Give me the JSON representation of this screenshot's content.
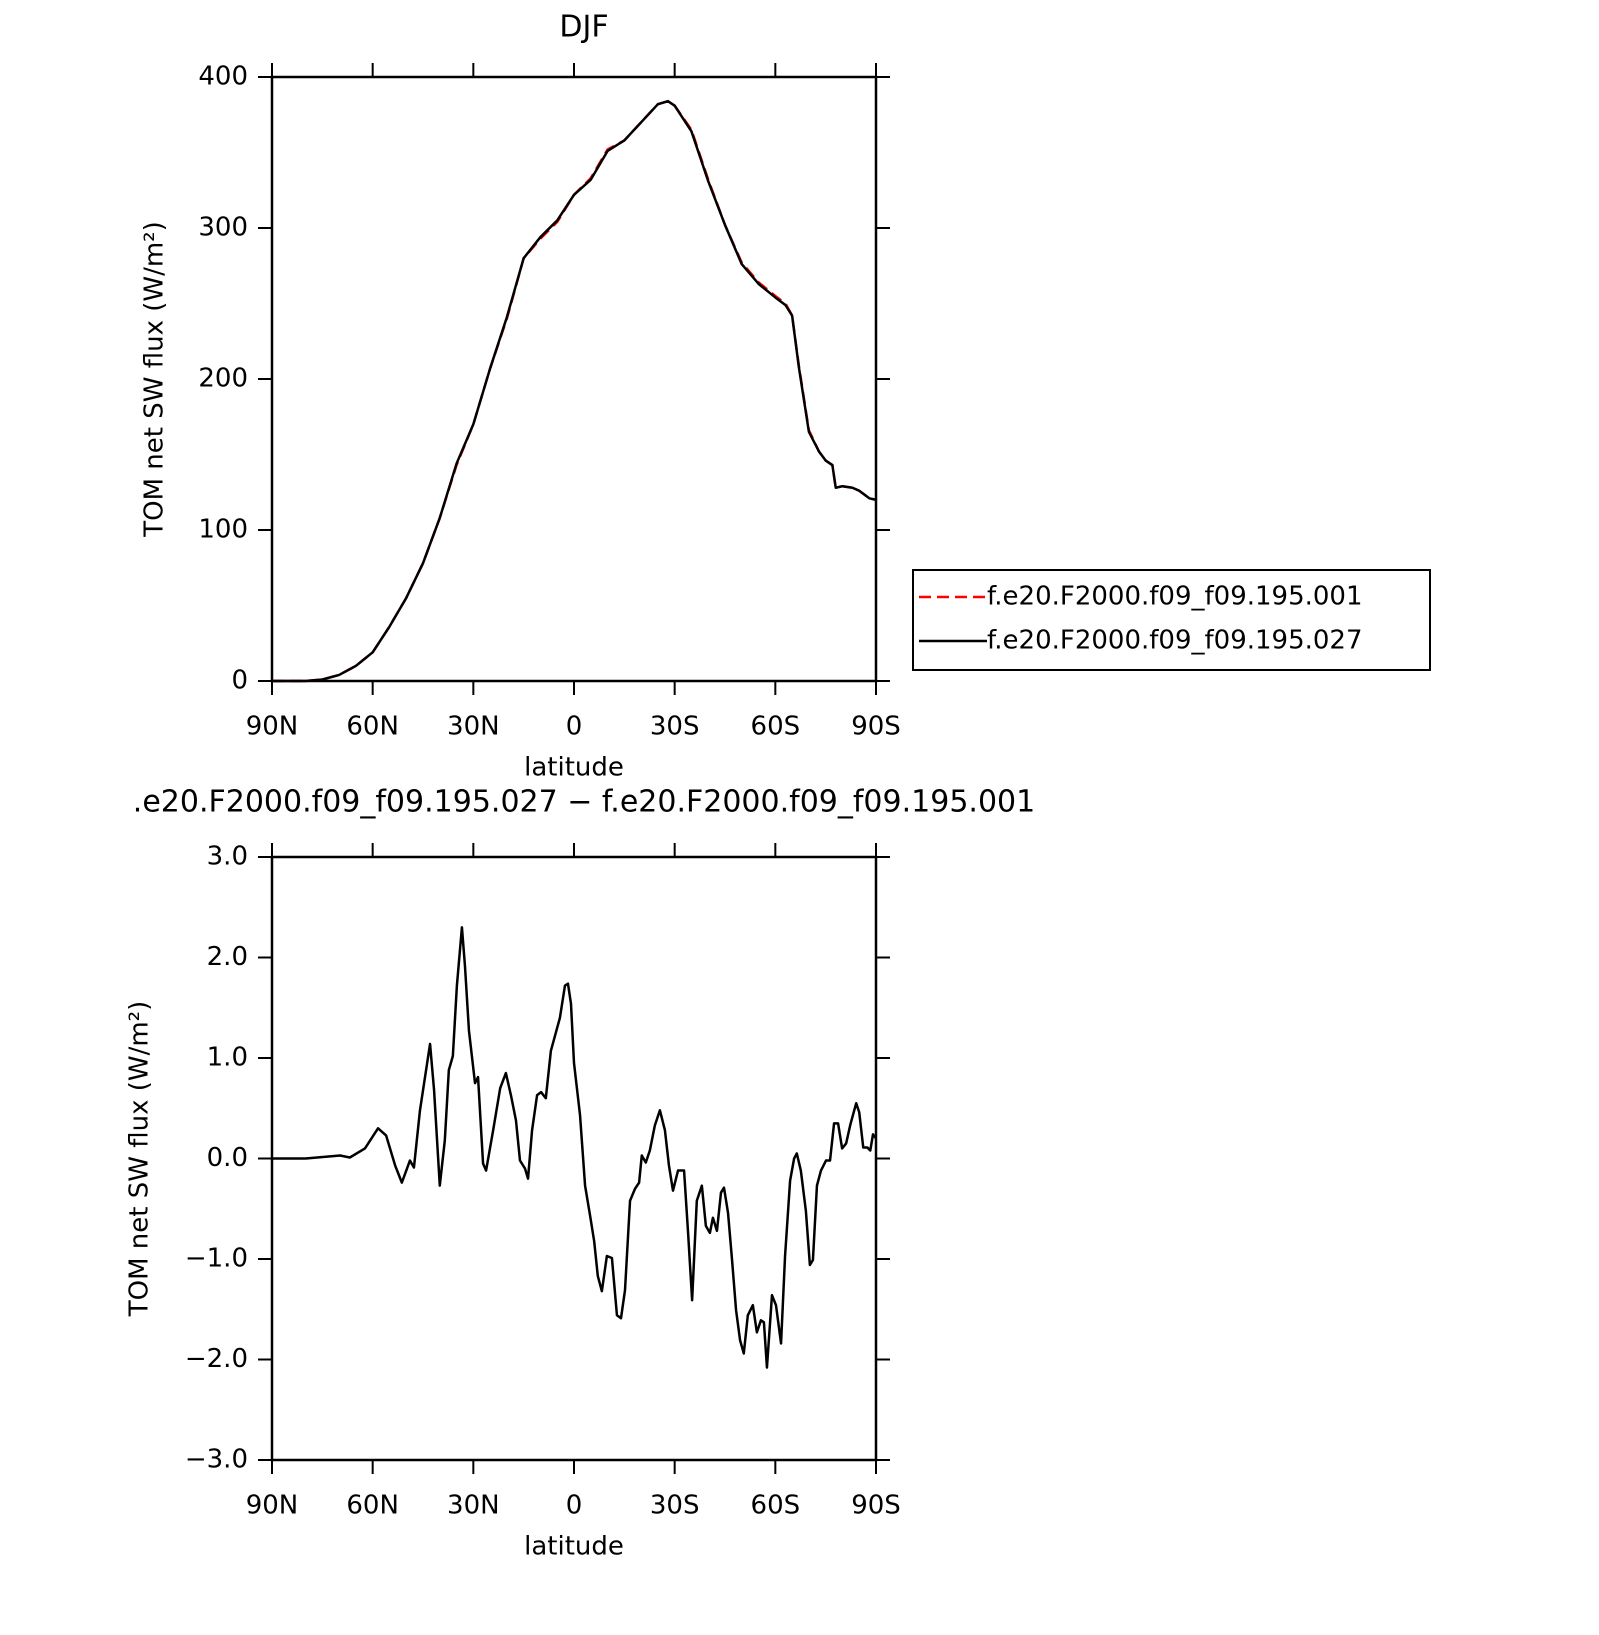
{
  "chart_data": [
    {
      "type": "line",
      "title": "DJF",
      "xlabel": "latitude",
      "ylabel": "TOM net SW flux (W/m²)",
      "x": [
        90,
        85,
        80,
        75,
        70,
        65,
        60,
        55,
        50,
        45,
        40,
        35,
        30,
        25,
        20,
        15,
        10,
        5,
        0,
        -5,
        -10,
        -15,
        -20,
        -25,
        -28,
        -30,
        -35,
        -40,
        -45,
        -50,
        -55,
        -60,
        -63,
        -65,
        -67,
        -70,
        -73,
        -75,
        -77,
        -78,
        -80,
        -83,
        -85,
        -88,
        -90
      ],
      "series": [
        {
          "name": "f.e20.F2000.f09_f09.195.001",
          "color": "#ff0000",
          "linestyle": "dashed",
          "values": [
            0,
            0,
            0,
            1,
            4,
            10,
            19,
            36,
            55,
            78,
            108,
            143,
            170,
            207,
            240,
            280,
            293,
            304,
            322,
            333,
            352,
            358,
            370,
            382,
            384,
            381,
            365,
            332,
            302,
            277,
            264,
            255,
            250,
            242,
            209,
            166,
            152,
            146,
            143,
            128,
            129,
            128,
            126,
            121,
            120
          ]
        },
        {
          "name": "f.e20.F2000.f09_f09.195.027",
          "color": "#000000",
          "linestyle": "solid",
          "values": [
            0,
            0,
            0,
            1,
            4,
            10,
            19,
            36,
            55,
            78,
            108,
            144,
            170,
            207,
            241,
            280,
            294,
            305,
            322,
            332,
            351,
            358,
            370,
            382,
            384,
            381,
            364,
            331,
            302,
            276,
            263,
            254,
            249,
            242,
            208,
            165,
            152,
            146,
            143,
            128,
            129,
            128,
            126,
            121,
            120
          ]
        }
      ],
      "xlim": [
        90,
        -90
      ],
      "xticks": [
        {
          "value": 90,
          "label": "90N"
        },
        {
          "value": 60,
          "label": "60N"
        },
        {
          "value": 30,
          "label": "30N"
        },
        0,
        {
          "value": -30,
          "label": "30S"
        },
        {
          "value": -60,
          "label": "60S"
        },
        {
          "value": -90,
          "label": "90S"
        }
      ],
      "ylim": [
        0,
        400
      ],
      "yticks": [
        0,
        100,
        200,
        300,
        400
      ],
      "grid": false,
      "legend": "outside-right"
    },
    {
      "type": "line",
      "title": ".e20.F2000.f09_f09.195.027 − f.e20.F2000.f09_f09.195.001",
      "xlabel": "latitude",
      "ylabel": "TOM net SW flux (W/m²)",
      "x": [
        90,
        80,
        69.7,
        66.8,
        62.3,
        58.4,
        56,
        53.3,
        51.3,
        48.9,
        47.7,
        45.9,
        42.9,
        41.7,
        40,
        38.5,
        37.3,
        36.1,
        34.9,
        33.4,
        32.5,
        31.3,
        29.5,
        28.6,
        27.1,
        26.2,
        24.1,
        22,
        20.3,
        18.8,
        17.3,
        16.1,
        14.6,
        13.7,
        12.5,
        11,
        9.8,
        8.4,
        6.9,
        4.2,
        2.7,
        1.8,
        0.9,
        0,
        -1.8,
        -3.3,
        -4.8,
        -6,
        -7.1,
        -8.3,
        -9.8,
        -11.3,
        -12.8,
        -14,
        -15.2,
        -16.7,
        -18.2,
        -19.4,
        -20.2,
        -21.4,
        -22.6,
        -24.1,
        -25.6,
        -27.1,
        -28.3,
        -29.5,
        -31,
        -32.8,
        -34,
        -35.2,
        -36.6,
        -38.1,
        -39.3,
        -40.5,
        -41.4,
        -42.6,
        -43.8,
        -44.7,
        -45.9,
        -47.1,
        -48.3,
        -49.5,
        -50.6,
        -51.8,
        -53.3,
        -54.5,
        -55.7,
        -56.6,
        -57.5,
        -59,
        -60.2,
        -61.7,
        -62.9,
        -64.4,
        -65.6,
        -66.4,
        -67.6,
        -69.1,
        -70.3,
        -71.2,
        -72.4,
        -73.6,
        -75.1,
        -76.3,
        -77.5,
        -78.7,
        -79.9,
        -81.1,
        -82.3,
        -84.1,
        -85,
        -86.2,
        -87.4,
        -88.3,
        -89.1,
        -90
      ],
      "series": [
        {
          "color": "#000000",
          "linestyle": "solid",
          "values": [
            0,
            0,
            0.03,
            0.01,
            0.1,
            0.3,
            0.23,
            -0.07,
            -0.24,
            -0.02,
            -0.09,
            0.48,
            1.14,
            0.68,
            -0.27,
            0.18,
            0.88,
            1.02,
            1.72,
            2.3,
            1.92,
            1.27,
            0.75,
            0.81,
            -0.05,
            -0.12,
            0.28,
            0.7,
            0.85,
            0.63,
            0.38,
            -0.02,
            -0.1,
            -0.2,
            0.28,
            0.63,
            0.66,
            0.6,
            1.07,
            1.4,
            1.72,
            1.74,
            1.54,
            0.95,
            0.43,
            -0.27,
            -0.57,
            -0.82,
            -1.17,
            -1.32,
            -0.97,
            -0.99,
            -1.56,
            -1.59,
            -1.31,
            -0.42,
            -0.3,
            -0.24,
            0.03,
            -0.04,
            0.08,
            0.33,
            0.48,
            0.28,
            -0.07,
            -0.32,
            -0.12,
            -0.12,
            -0.74,
            -1.41,
            -0.42,
            -0.27,
            -0.67,
            -0.74,
            -0.59,
            -0.72,
            -0.34,
            -0.29,
            -0.54,
            -1.01,
            -1.51,
            -1.81,
            -1.94,
            -1.56,
            -1.46,
            -1.73,
            -1.61,
            -1.63,
            -2.08,
            -1.36,
            -1.46,
            -1.84,
            -0.97,
            -0.22,
            0,
            0.05,
            -0.12,
            -0.52,
            -1.06,
            -1.01,
            -0.27,
            -0.12,
            -0.02,
            -0.02,
            0.35,
            0.35,
            0.1,
            0.15,
            0.33,
            0.55,
            0.46,
            0.11,
            0.11,
            0.08,
            0.24,
            0.2
          ]
        }
      ],
      "xlim": [
        90,
        -90
      ],
      "xticks": [
        {
          "value": 90,
          "label": "90N"
        },
        {
          "value": 60,
          "label": "60N"
        },
        {
          "value": 30,
          "label": "30N"
        },
        0,
        {
          "value": -30,
          "label": "30S"
        },
        {
          "value": -60,
          "label": "60S"
        },
        {
          "value": -90,
          "label": "90S"
        }
      ],
      "ylim": [
        -3,
        3
      ],
      "yticks": [
        {
          "value": -3,
          "label": "−3.0"
        },
        {
          "value": -2,
          "label": "−2.0"
        },
        {
          "value": -1,
          "label": "−1.0"
        },
        {
          "value": 0,
          "label": "0.0"
        },
        {
          "value": 1,
          "label": "1.0"
        },
        {
          "value": 2,
          "label": "2.0"
        },
        {
          "value": 3,
          "label": "3.0"
        }
      ],
      "grid": false
    }
  ]
}
